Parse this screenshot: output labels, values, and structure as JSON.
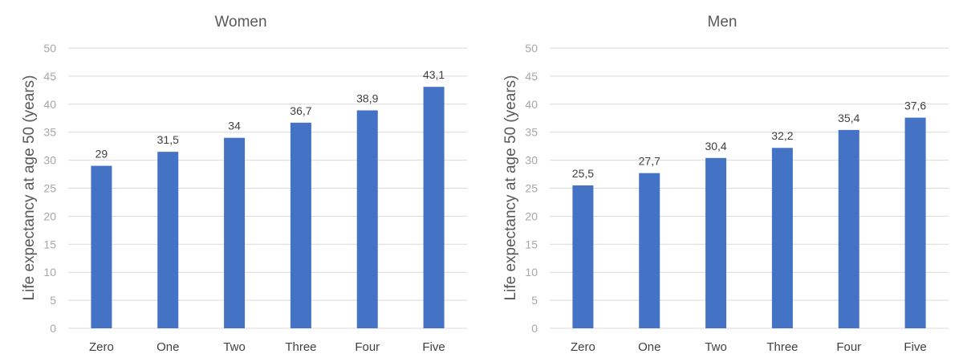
{
  "chart_data": [
    {
      "type": "bar",
      "title": "Women",
      "ylabel": "Life expectancy at age 50 (years)",
      "xlabel": "",
      "categories": [
        "Zero",
        "One",
        "Two",
        "Three",
        "Four",
        "Five"
      ],
      "values": [
        29,
        31.5,
        34,
        36.7,
        38.9,
        43.1
      ],
      "data_labels": [
        "29",
        "31,5",
        "34",
        "36,7",
        "38,9",
        "43,1"
      ],
      "ylim": [
        0,
        50
      ],
      "yticks": [
        "0",
        "5",
        "10",
        "15",
        "20",
        "25",
        "30",
        "35",
        "40",
        "45",
        "50"
      ],
      "grid": true,
      "bar_color": "#4472c4"
    },
    {
      "type": "bar",
      "title": "Men",
      "ylabel": "Life expectancy at age 50 (years)",
      "xlabel": "",
      "categories": [
        "Zero",
        "One",
        "Two",
        "Three",
        "Four",
        "Five"
      ],
      "values": [
        25.5,
        27.7,
        30.4,
        32.2,
        35.4,
        37.6
      ],
      "data_labels": [
        "25,5",
        "27,7",
        "30,4",
        "32,2",
        "35,4",
        "37,6"
      ],
      "ylim": [
        0,
        50
      ],
      "yticks": [
        "0",
        "5",
        "10",
        "15",
        "20",
        "25",
        "30",
        "35",
        "40",
        "45",
        "50"
      ],
      "grid": true,
      "bar_color": "#4472c4"
    }
  ]
}
